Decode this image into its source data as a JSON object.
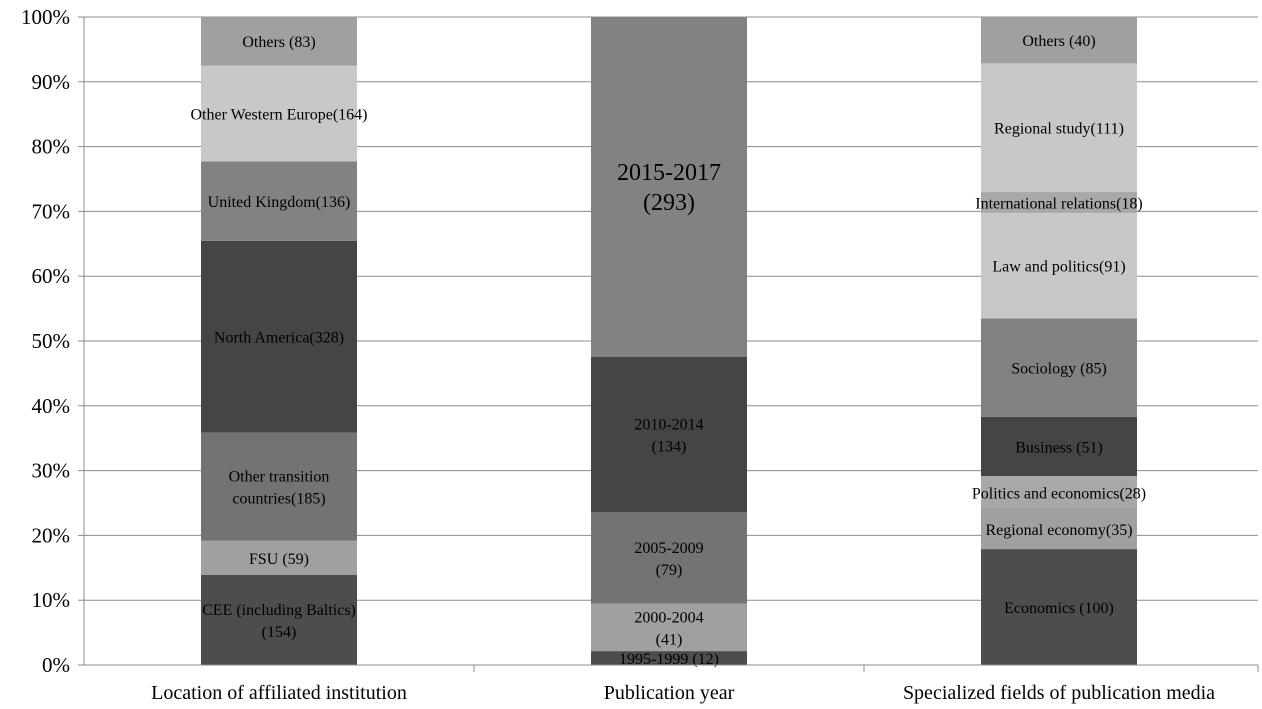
{
  "chart_data": {
    "type": "bar",
    "stacked": true,
    "percent": true,
    "title": "",
    "xlabel": "",
    "ylabel": "",
    "ylim": [
      0,
      100
    ],
    "y_ticks": [
      "0%",
      "10%",
      "20%",
      "30%",
      "40%",
      "50%",
      "60%",
      "70%",
      "80%",
      "90%",
      "100%"
    ],
    "grid": true,
    "legend": "none",
    "categories": [
      "Location of affiliated institution",
      "Publication year",
      "Specialized fields of publication media"
    ],
    "stacks": [
      {
        "category": "Location of affiliated institution",
        "segments": [
          {
            "label_lines": [
              "CEE (including Baltics)",
              "(154)"
            ],
            "value": 154,
            "color": "#4d4d4d"
          },
          {
            "label_lines": [
              "FSU (59)"
            ],
            "value": 59,
            "color": "#a0a0a0"
          },
          {
            "label_lines": [
              "Other transition",
              "countries(185)"
            ],
            "value": 185,
            "color": "#737373"
          },
          {
            "label_lines": [
              "North America(328)"
            ],
            "value": 328,
            "color": "#454545"
          },
          {
            "label_lines": [
              "United Kingdom(136)"
            ],
            "value": 136,
            "color": "#828282"
          },
          {
            "label_lines": [
              "Other Western Europe(164)"
            ],
            "value": 164,
            "color": "#c8c8c8"
          },
          {
            "label_lines": [
              "Others (83)"
            ],
            "value": 83,
            "color": "#a0a0a0"
          }
        ]
      },
      {
        "category": "Publication year",
        "segments": [
          {
            "label_lines": [
              "1995-1999 (12)"
            ],
            "value": 12,
            "color": "#4d4d4d"
          },
          {
            "label_lines": [
              "2000-2004",
              "(41)"
            ],
            "value": 41,
            "color": "#a0a0a0"
          },
          {
            "label_lines": [
              "2005-2009",
              "(79)"
            ],
            "value": 79,
            "color": "#737373"
          },
          {
            "label_lines": [
              "2010-2014",
              "(134)"
            ],
            "value": 134,
            "color": "#454545"
          },
          {
            "label_lines": [
              "2015-2017",
              "(293)"
            ],
            "value": 293,
            "color": "#828282",
            "large": true
          }
        ]
      },
      {
        "category": "Specialized fields of publication media",
        "segments": [
          {
            "label_lines": [
              "Economics (100)"
            ],
            "value": 100,
            "color": "#4d4d4d"
          },
          {
            "label_lines": [
              "Regional economy(35)"
            ],
            "value": 35,
            "color": "#a0a0a0"
          },
          {
            "label_lines": [
              "Politics and economics(28)"
            ],
            "value": 28,
            "color": "#a8a8a8"
          },
          {
            "label_lines": [
              "Business    (51)"
            ],
            "value": 51,
            "color": "#454545"
          },
          {
            "label_lines": [
              "Sociology (85)"
            ],
            "value": 85,
            "color": "#828282"
          },
          {
            "label_lines": [
              "Law and politics(91)"
            ],
            "value": 91,
            "color": "#c8c8c8"
          },
          {
            "label_lines": [
              "International relations(18)"
            ],
            "value": 18,
            "color": "#a8a8a8"
          },
          {
            "label_lines": [
              "Regional study(111)"
            ],
            "value": 111,
            "color": "#c8c8c8"
          },
          {
            "label_lines": [
              "Others (40)"
            ],
            "value": 40,
            "color": "#a0a0a0"
          }
        ]
      }
    ]
  }
}
